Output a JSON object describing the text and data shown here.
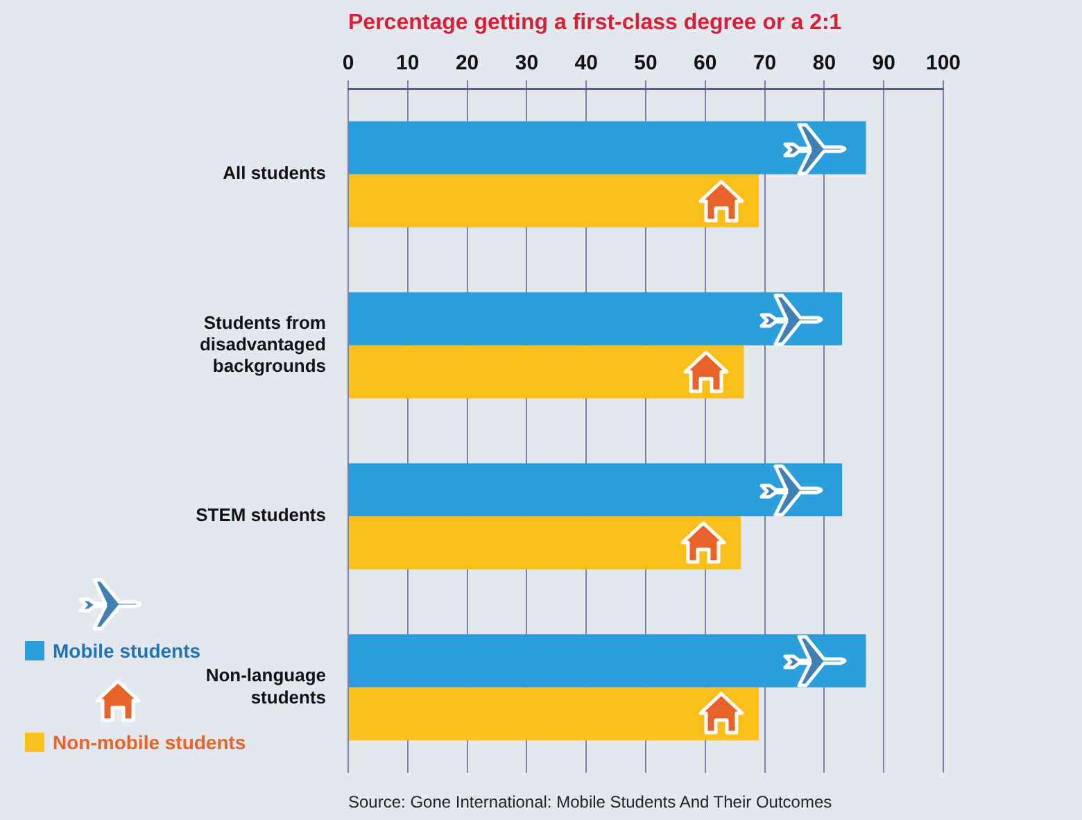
{
  "chart_data": {
    "type": "bar",
    "orientation": "horizontal",
    "title": "Percentage getting a first-class degree or a 2:1",
    "categories": [
      "All students",
      "Students from disadvantaged backgrounds",
      "STEM students",
      "Non-language students"
    ],
    "series": [
      {
        "name": "Mobile students",
        "color": "#2a9fdc",
        "values": [
          87,
          83,
          83,
          87
        ]
      },
      {
        "name": "Non-mobile students",
        "color": "#fbbf1a",
        "values": [
          69,
          66.5,
          66,
          69
        ]
      }
    ],
    "xlim": [
      0,
      100
    ],
    "xticks": [
      0,
      10,
      20,
      30,
      40,
      50,
      60,
      70,
      80,
      90,
      100
    ],
    "grid": "x",
    "legend": "bottom left",
    "annotations": [
      "Source: Gone International: Mobile Students And Their Outcomes"
    ]
  }
}
